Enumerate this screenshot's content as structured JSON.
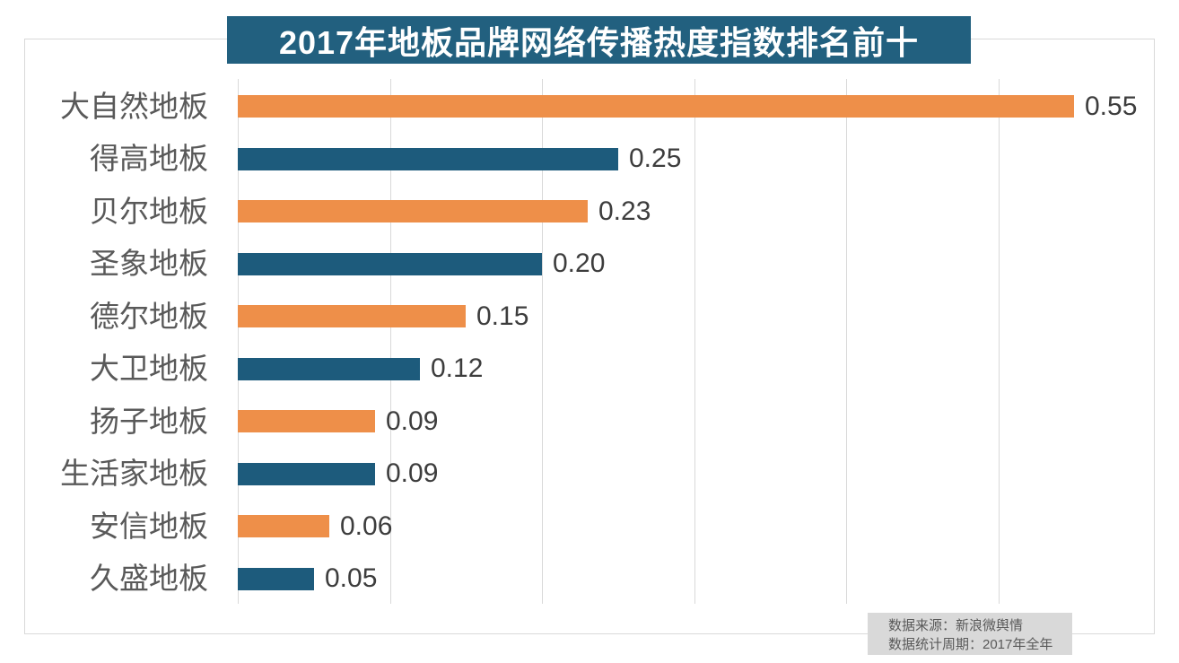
{
  "title": "2017年地板品牌网络传播热度指数排名前十",
  "chart_data": {
    "type": "bar",
    "orientation": "horizontal",
    "title": "2017年地板品牌网络传播热度指数排名前十",
    "categories": [
      "大自然地板",
      "得高地板",
      "贝尔地板",
      "圣象地板",
      "德尔地板",
      "大卫地板",
      "扬子地板",
      "生活家地板",
      "安信地板",
      "久盛地板"
    ],
    "values": [
      0.55,
      0.25,
      0.23,
      0.2,
      0.15,
      0.12,
      0.09,
      0.09,
      0.06,
      0.05
    ],
    "value_labels": [
      "0.55",
      "0.25",
      "0.23",
      "0.20",
      "0.15",
      "0.12",
      "0.09",
      "0.09",
      "0.06",
      "0.05"
    ],
    "xlim": [
      0,
      0.6
    ],
    "gridline_ticks": [
      0,
      0.1,
      0.2,
      0.3,
      0.4,
      0.5,
      0.6
    ],
    "grid": true,
    "legend": "none",
    "xlabel": "",
    "ylabel": ""
  },
  "footer": {
    "source_line1": "数据来源：新浪微舆情",
    "source_line2": "数据统计周期：2017年全年"
  },
  "colors": {
    "banner_bg": "#22607f",
    "banner_text": "#ffffff",
    "bar_orange": "#ee8f49",
    "bar_blue": "#1d5b7c",
    "category_label_text": "#595959",
    "value_label_text": "#3d3d3d",
    "gridline": "#d9d9d9",
    "frame_border": "#d9d9d9",
    "footer_bg": "#d9d9d9",
    "footer_text": "#595959",
    "background": "#ffffff"
  }
}
